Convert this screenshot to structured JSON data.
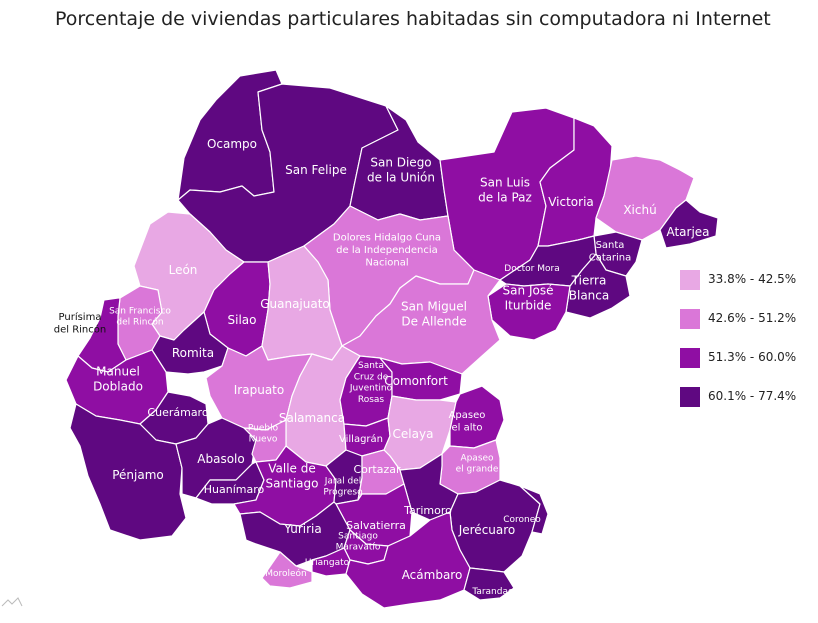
{
  "title": "Porcentaje de viviendas particulares habitadas sin computadora ni Internet",
  "colors": {
    "c1": "#e8a8e4",
    "c2": "#da77d8",
    "c3": "#8f0ea3",
    "c4": "#5f0881"
  },
  "legend": [
    {
      "label": "33.8% - 42.5%",
      "class": "c1"
    },
    {
      "label": "42.6% - 51.2%",
      "class": "c2"
    },
    {
      "label": "51.3% - 60.0%",
      "class": "c3"
    },
    {
      "label": "60.1% - 77.4%",
      "class": "c4"
    }
  ],
  "municipalities": [
    {
      "name": "Ocampo",
      "class": "c4"
    },
    {
      "name": "San Felipe",
      "class": "c4"
    },
    {
      "name": "San Diego de la Unión",
      "class": "c4"
    },
    {
      "name": "San Luis de la Paz",
      "class": "c3"
    },
    {
      "name": "Victoria",
      "class": "c3"
    },
    {
      "name": "Xichú",
      "class": "c2"
    },
    {
      "name": "Atarjea",
      "class": "c4"
    },
    {
      "name": "Santa Catarina",
      "class": "c4"
    },
    {
      "name": "Tierra Blanca",
      "class": "c4"
    },
    {
      "name": "Doctor Mora",
      "class": "c4"
    },
    {
      "name": "San José Iturbide",
      "class": "c3"
    },
    {
      "name": "Dolores Hidalgo Cuna de la Independencia Nacional",
      "class": "c2"
    },
    {
      "name": "León",
      "class": "c1"
    },
    {
      "name": "San Francisco del Rincón",
      "class": "c2"
    },
    {
      "name": "Purísima del Rincón",
      "class": "c3"
    },
    {
      "name": "Silao",
      "class": "c3"
    },
    {
      "name": "Guanajuato",
      "class": "c1"
    },
    {
      "name": "San Miguel De Allende",
      "class": "c2"
    },
    {
      "name": "Romita",
      "class": "c4"
    },
    {
      "name": "Manuel Doblado",
      "class": "c3"
    },
    {
      "name": "Cuerámaro",
      "class": "c4"
    },
    {
      "name": "Irapuato",
      "class": "c2"
    },
    {
      "name": "Salamanca",
      "class": "c1"
    },
    {
      "name": "Santa Cruz de Juventino Rosas",
      "class": "c3"
    },
    {
      "name": "Villagrán",
      "class": "c3"
    },
    {
      "name": "Comonfort",
      "class": "c3"
    },
    {
      "name": "Celaya",
      "class": "c1"
    },
    {
      "name": "Apaseo el alto",
      "class": "c3"
    },
    {
      "name": "Apaseo el grande",
      "class": "c2"
    },
    {
      "name": "Pénjamo",
      "class": "c4"
    },
    {
      "name": "Abasolo",
      "class": "c4"
    },
    {
      "name": "Pueblo Nuevo",
      "class": "c2"
    },
    {
      "name": "Huanímaro",
      "class": "c4"
    },
    {
      "name": "Valle de Santiago",
      "class": "c3"
    },
    {
      "name": "Jaral del Progreso",
      "class": "c4"
    },
    {
      "name": "Cortazar",
      "class": "c2"
    },
    {
      "name": "Tarimoro",
      "class": "c4"
    },
    {
      "name": "Salvatierra",
      "class": "c3"
    },
    {
      "name": "Jerécuaro",
      "class": "c4"
    },
    {
      "name": "Coroneo",
      "class": "c4"
    },
    {
      "name": "Yuriria",
      "class": "c4"
    },
    {
      "name": "Santiago Maravatío",
      "class": "c3"
    },
    {
      "name": "Uriangato",
      "class": "c3"
    },
    {
      "name": "Moroleón",
      "class": "c2"
    },
    {
      "name": "Acámbaro",
      "class": "c3"
    },
    {
      "name": "Tarandacuao",
      "class": "c4"
    }
  ],
  "labels": [
    {
      "lines": [
        "Ocampo"
      ],
      "muni": 0
    },
    {
      "lines": [
        "San Felipe"
      ],
      "muni": 1
    },
    {
      "lines": [
        "San Diego",
        "de la Unión"
      ],
      "muni": 2
    },
    {
      "lines": [
        "San Luis",
        "de la Paz"
      ],
      "muni": 3
    },
    {
      "lines": [
        "Victoria"
      ],
      "muni": 4
    },
    {
      "lines": [
        "Xichú"
      ],
      "muni": 5
    },
    {
      "lines": [
        "Atarjea"
      ],
      "muni": 6
    },
    {
      "lines": [
        "Santa",
        "Catarina"
      ],
      "muni": 7
    },
    {
      "lines": [
        "Tierra",
        "Blanca"
      ],
      "muni": 8
    },
    {
      "lines": [
        "Doctor Mora"
      ],
      "muni": 9
    },
    {
      "lines": [
        "San José",
        "Iturbide"
      ],
      "muni": 10
    },
    {
      "lines": [
        "Dolores Hidalgo Cuna",
        "de la Independencia",
        "Nacional"
      ],
      "muni": 11
    },
    {
      "lines": [
        "León"
      ],
      "muni": 12
    },
    {
      "lines": [
        "San Francisco",
        "del Rincón"
      ],
      "muni": 13
    },
    {
      "lines": [
        "Purísima",
        "del Rincón"
      ],
      "muni": 14
    },
    {
      "lines": [
        "Silao"
      ],
      "muni": 15
    },
    {
      "lines": [
        "Guanajuato"
      ],
      "muni": 16
    },
    {
      "lines": [
        "San Miguel",
        "De Allende"
      ],
      "muni": 17
    },
    {
      "lines": [
        "Romita"
      ],
      "muni": 18
    },
    {
      "lines": [
        "Manuel",
        "Doblado"
      ],
      "muni": 19
    },
    {
      "lines": [
        "Cuerámaro"
      ],
      "muni": 20
    },
    {
      "lines": [
        "Irapuato"
      ],
      "muni": 21
    },
    {
      "lines": [
        "Salamanca"
      ],
      "muni": 22
    },
    {
      "lines": [
        "Santa",
        "Cruz de",
        "Juventino",
        "Rosas"
      ],
      "muni": 23
    },
    {
      "lines": [
        "Villagrán"
      ],
      "muni": 24
    },
    {
      "lines": [
        "Comonfort"
      ],
      "muni": 25
    },
    {
      "lines": [
        "Celaya"
      ],
      "muni": 26
    },
    {
      "lines": [
        "Apaseo",
        "el alto"
      ],
      "muni": 27
    },
    {
      "lines": [
        "Apaseo",
        "el grande"
      ],
      "muni": 28
    },
    {
      "lines": [
        "Pénjamo"
      ],
      "muni": 29
    },
    {
      "lines": [
        "Abasolo"
      ],
      "muni": 30
    },
    {
      "lines": [
        "Pueblo",
        "Nuevo"
      ],
      "muni": 31
    },
    {
      "lines": [
        "Huanímaro"
      ],
      "muni": 32
    },
    {
      "lines": [
        "Valle de",
        "Santiago"
      ],
      "muni": 33
    },
    {
      "lines": [
        "Jaral del",
        "Progreso"
      ],
      "muni": 34
    },
    {
      "lines": [
        "Cortazar"
      ],
      "muni": 35
    },
    {
      "lines": [
        "Tarimoro"
      ],
      "muni": 36
    },
    {
      "lines": [
        "Salvatierra"
      ],
      "muni": 37
    },
    {
      "lines": [
        "Jerécuaro"
      ],
      "muni": 38
    },
    {
      "lines": [
        "Coroneo"
      ],
      "muni": 39
    },
    {
      "lines": [
        "Yuriria"
      ],
      "muni": 40
    },
    {
      "lines": [
        "Santiago",
        "Maravatío"
      ],
      "muni": 41
    },
    {
      "lines": [
        "Uriangato"
      ],
      "muni": 42
    },
    {
      "lines": [
        "Moroleón"
      ],
      "muni": 43
    },
    {
      "lines": [
        "Acámbaro"
      ],
      "muni": 44
    },
    {
      "lines": [
        "Tarandacuao"
      ],
      "muni": 45
    }
  ]
}
